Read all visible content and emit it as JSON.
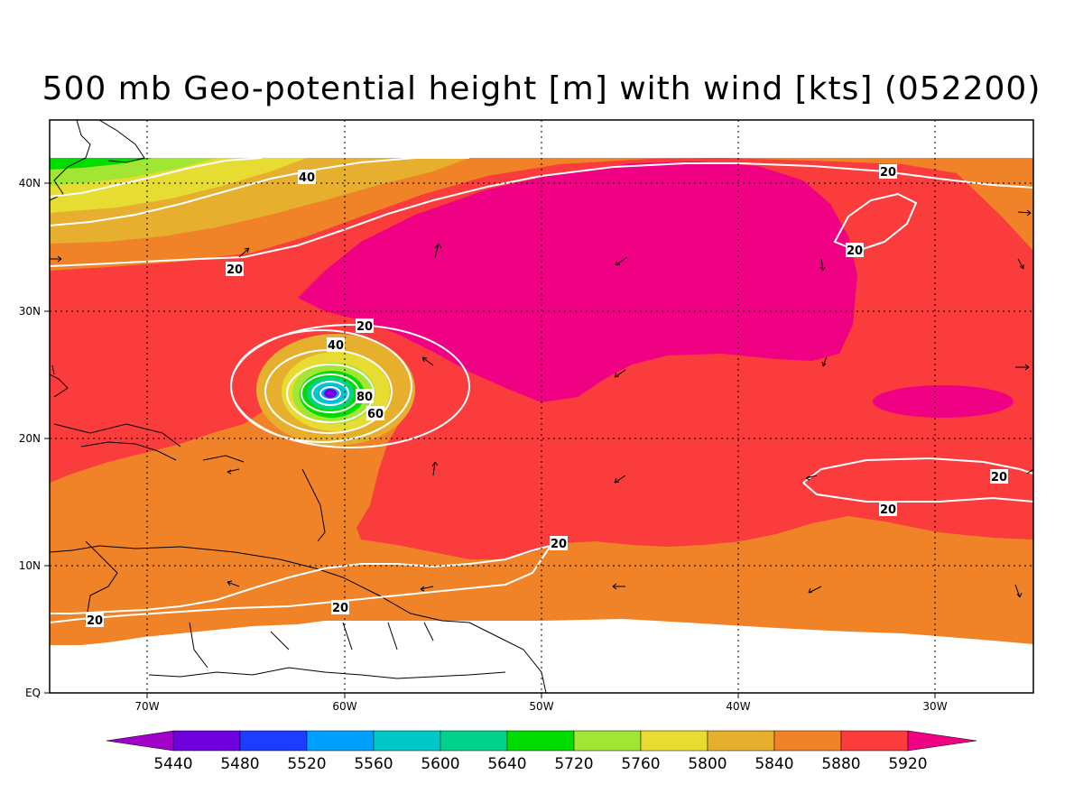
{
  "title": "500 mb Geo-potential height [m] with wind [kts] (052200)",
  "colors": {
    "c5440": "#a000c8",
    "c5480": "#6e00dc",
    "c5520": "#1e3cff",
    "c5560": "#00a0ff",
    "c5600": "#00c8c8",
    "c5640": "#00d28c",
    "c5720": "#00dc00",
    "c5760": "#a0e632",
    "c5800": "#e6dc32",
    "c5840": "#e6af2d",
    "c5880": "#f08228",
    "c5920": "#fa3c3c",
    "c5960": "#f00082",
    "isotach": "#ffffff",
    "coast": "#000000"
  },
  "x_axis": {
    "labels": [
      "70W",
      "60W",
      "50W",
      "40W",
      "30W"
    ]
  },
  "y_axis": {
    "labels": [
      "EQ",
      "10N",
      "20N",
      "30N",
      "40N"
    ]
  },
  "colorbar": {
    "labels": [
      "5440",
      "5480",
      "5520",
      "5560",
      "5600",
      "5640",
      "5720",
      "5760",
      "5800",
      "5840",
      "5880",
      "5920"
    ]
  },
  "isotach_labels": [
    "40",
    "20",
    "20",
    "20",
    "20",
    "40",
    "80",
    "60",
    "20",
    "20",
    "20",
    "20",
    "20"
  ]
}
